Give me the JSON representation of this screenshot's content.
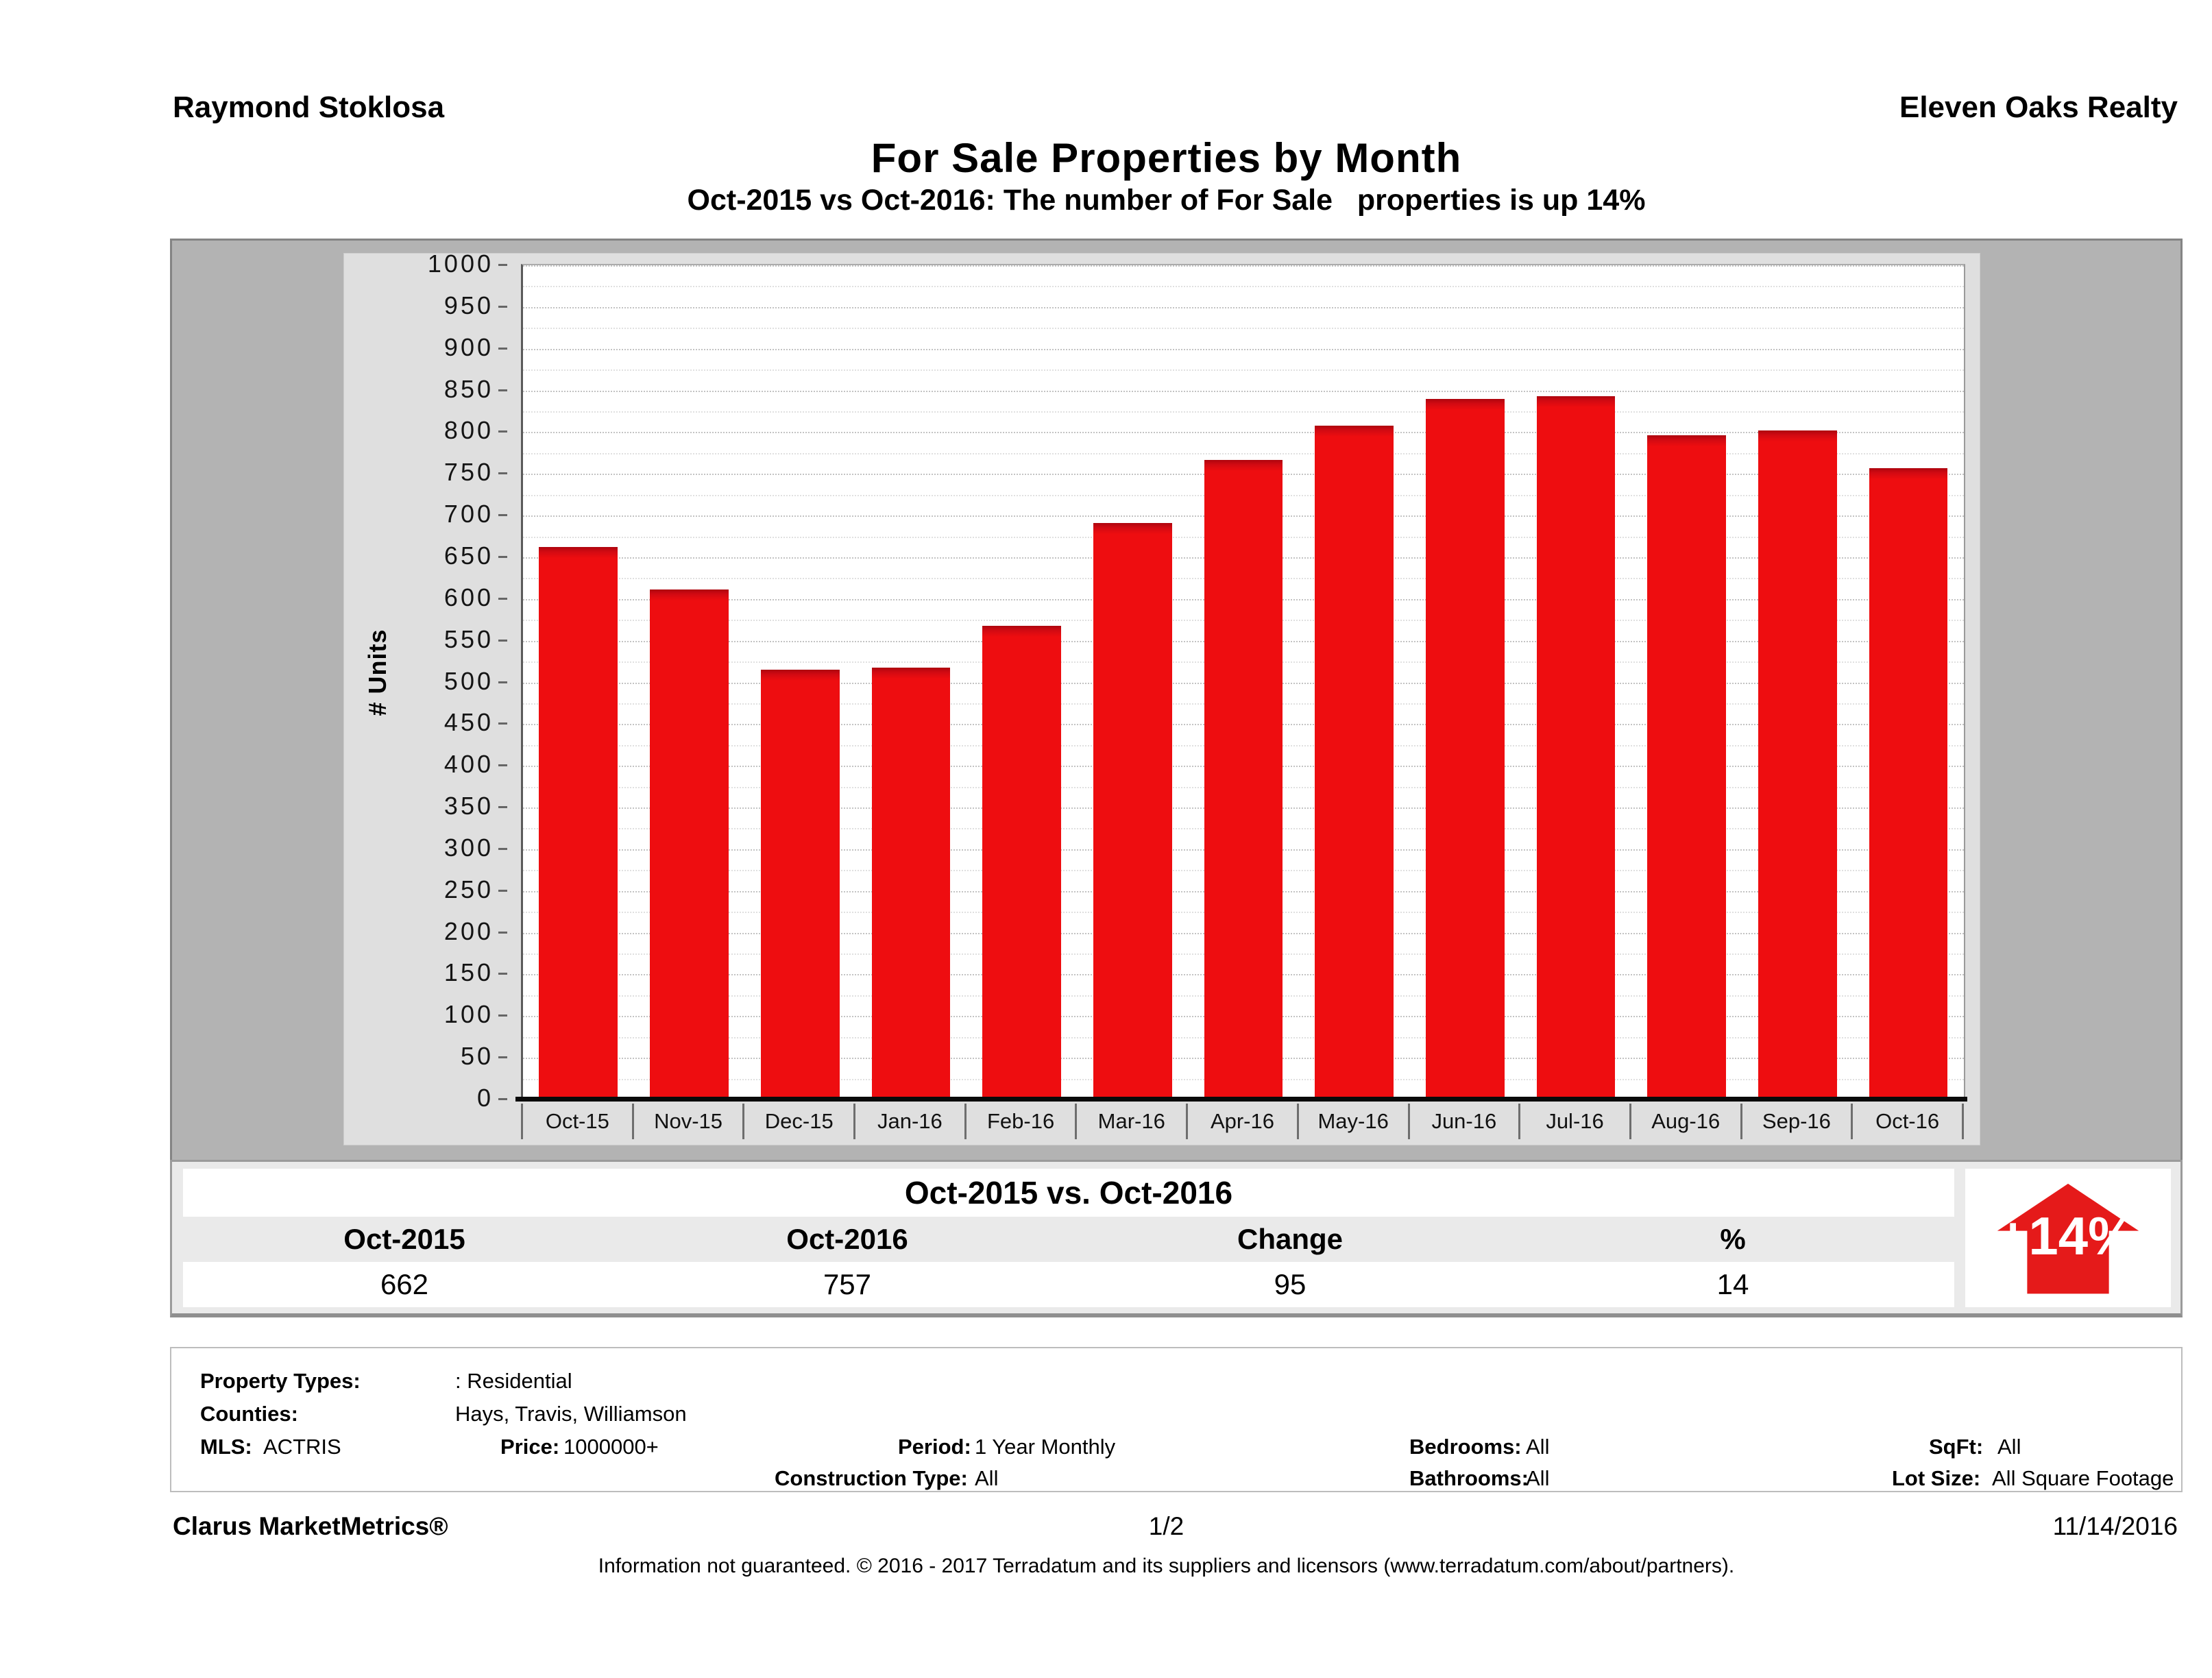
{
  "header": {
    "agent": "Raymond Stoklosa",
    "company": "Eleven Oaks Realty"
  },
  "title": "For Sale Properties by Month",
  "subtitle": "Oct-2015 vs Oct-2016: The number of For Sale   properties is up 14%",
  "chart_data": {
    "type": "bar",
    "categories": [
      "Oct-15",
      "Nov-15",
      "Dec-15",
      "Jan-16",
      "Feb-16",
      "Mar-16",
      "Apr-16",
      "May-16",
      "Jun-16",
      "Jul-16",
      "Aug-16",
      "Sep-16",
      "Oct-16"
    ],
    "values": [
      662,
      611,
      515,
      518,
      568,
      691,
      767,
      808,
      840,
      843,
      796,
      802,
      757
    ],
    "title": "For Sale Properties by Month",
    "xlabel": "",
    "ylabel": "# Units",
    "ylim": [
      0,
      1000
    ],
    "ytick_step": 50,
    "minor_grid_step": 25,
    "grid": true,
    "legend": "none",
    "bar_color": "#ee0d10"
  },
  "summary_table": {
    "title": "Oct-2015 vs. Oct-2016",
    "columns": [
      "Oct-2015",
      "Oct-2016",
      "Change",
      "%"
    ],
    "values": [
      "662",
      "757",
      "95",
      "14"
    ],
    "badge": {
      "label": "+14%",
      "direction": "up",
      "color": "#e51a1a"
    }
  },
  "criteria": {
    "property_types_label": "Property Types:",
    "property_types_value": ": Residential",
    "counties_label": "Counties:",
    "counties_value": "Hays, Travis, Williamson",
    "mls_label": "MLS:",
    "mls_value": "ACTRIS",
    "price_label": "Price:",
    "price_value": "1000000+",
    "period_label": "Period:",
    "period_value": "1 Year Monthly",
    "construction_label": "Construction Type:",
    "construction_value": "All",
    "bedrooms_label": "Bedrooms:",
    "bedrooms_value": "All",
    "bathrooms_label": "Bathrooms:",
    "bathrooms_value": "All",
    "sqft_label": "SqFt:",
    "sqft_value": "All",
    "lot_label": "Lot Size:",
    "lot_value": "All Square Footage"
  },
  "footer": {
    "brand": "Clarus MarketMetrics®",
    "page": "1/2",
    "date": "11/14/2016",
    "disclaimer": "Information not guaranteed. © 2016 - 2017 Terradatum and its suppliers and licensors (www.terradatum.com/about/partners)."
  }
}
